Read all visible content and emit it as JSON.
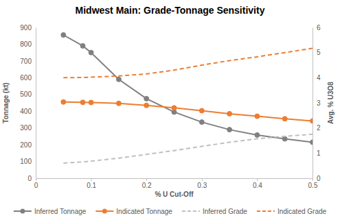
{
  "chart_data": {
    "type": "line",
    "title": "Midwest Main: Grade-Tonnage Sensitivity",
    "xlabel": "% U Cut-Off",
    "ylabel": "Tonnage (kt)",
    "y2label": "Avg. % U3O8",
    "x": [
      0.05,
      0.085,
      0.1,
      0.15,
      0.2,
      0.25,
      0.3,
      0.35,
      0.4,
      0.45,
      0.5
    ],
    "series": [
      {
        "name": "Inferred Tonnage",
        "color": "#808080",
        "marker": "circle",
        "line_style": "solid",
        "values": [
          855,
          790,
          750,
          590,
          475,
          395,
          335,
          290,
          258,
          235,
          215
        ]
      },
      {
        "name": "Indicated Tonnage",
        "color": "#ed7d31",
        "marker": "circle",
        "line_style": "solid",
        "values": [
          455,
          453,
          452,
          447,
          435,
          420,
          403,
          385,
          370,
          355,
          342
        ]
      },
      {
        "name": "Inferred Grade",
        "color": "#bfbfbf",
        "line_style": "dashed",
        "axis": "y2",
        "values": [
          0.6,
          0.65,
          0.68,
          0.8,
          0.95,
          1.1,
          1.27,
          1.43,
          1.57,
          1.67,
          1.75
        ]
      },
      {
        "name": "Indicated Grade",
        "color": "#ed7d31",
        "line_style": "dashed",
        "axis": "y2",
        "values": [
          4.0,
          4.01,
          4.02,
          4.07,
          4.15,
          4.3,
          4.5,
          4.68,
          4.83,
          5.0,
          5.17
        ]
      }
    ],
    "xlim": [
      0,
      0.5
    ],
    "xticks": [
      0,
      0.1,
      0.2,
      0.3,
      0.4,
      0.5
    ],
    "ylim": [
      0,
      900
    ],
    "yticks": [
      0,
      100,
      200,
      300,
      400,
      500,
      600,
      700,
      800,
      900
    ],
    "y2lim": [
      0,
      6
    ],
    "y2ticks": [
      0,
      1,
      2,
      3,
      4,
      5,
      6
    ],
    "grid": false,
    "legend": "bottom"
  }
}
